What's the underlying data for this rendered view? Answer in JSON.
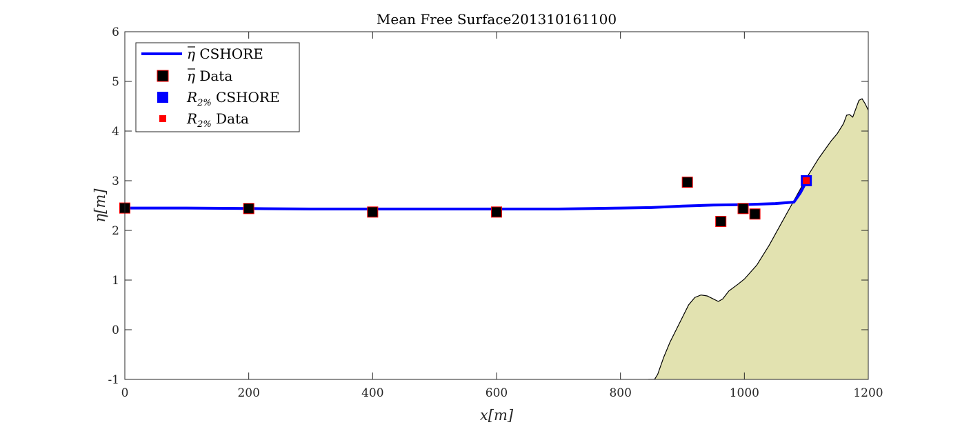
{
  "chart_data": {
    "type": "line",
    "title": "Mean Free Surface201310161100",
    "xlabel": "x[m]",
    "ylabel": "η[m]",
    "xlim": [
      0,
      1200
    ],
    "ylim": [
      -1,
      6
    ],
    "xticks": [
      "0",
      "200",
      "400",
      "600",
      "800",
      "1000",
      "1200"
    ],
    "yticks": [
      "-1",
      "0",
      "1",
      "2",
      "3",
      "4",
      "5",
      "6"
    ],
    "grid": false,
    "legend_position": "top-left",
    "colors": {
      "cshore_line": "#0000ff",
      "eta_data_fill": "#000000",
      "eta_data_edge": "#ff0000",
      "r2_cshore": "#0000ff",
      "r2_data": "#ff0000",
      "bathymetry_fill": "#e2e2b0"
    },
    "series": [
      {
        "name": "η CSHORE",
        "kind": "line",
        "x": [
          0,
          100,
          200,
          300,
          400,
          500,
          600,
          700,
          800,
          850,
          900,
          950,
          1000,
          1050,
          1080,
          1090,
          1100
        ],
        "y": [
          2.45,
          2.45,
          2.44,
          2.43,
          2.43,
          2.43,
          2.43,
          2.43,
          2.45,
          2.46,
          2.49,
          2.51,
          2.52,
          2.54,
          2.57,
          2.75,
          2.98
        ]
      },
      {
        "name": "η Data",
        "kind": "marker",
        "x": [
          0,
          200,
          400,
          600,
          908,
          962,
          998,
          1017
        ],
        "y": [
          2.45,
          2.44,
          2.37,
          2.37,
          2.97,
          2.18,
          2.44,
          2.33
        ]
      },
      {
        "name": "R2% CSHORE",
        "kind": "marker",
        "x": [
          1100
        ],
        "y": [
          3.0
        ]
      },
      {
        "name": "R2% Data",
        "kind": "marker",
        "x": [
          1100
        ],
        "y": [
          3.0
        ]
      }
    ],
    "bathymetry": {
      "x": [
        845,
        855,
        860,
        870,
        880,
        890,
        900,
        910,
        920,
        930,
        940,
        950,
        958,
        965,
        975,
        990,
        1000,
        1020,
        1040,
        1060,
        1080,
        1100,
        1120,
        1140,
        1150,
        1160,
        1165,
        1170,
        1175,
        1180,
        1185,
        1190,
        1195,
        1200
      ],
      "y": [
        -1.0,
        -1.0,
        -0.9,
        -0.55,
        -0.25,
        0.0,
        0.25,
        0.5,
        0.65,
        0.7,
        0.68,
        0.62,
        0.57,
        0.62,
        0.78,
        0.92,
        1.02,
        1.3,
        1.7,
        2.15,
        2.6,
        3.05,
        3.45,
        3.8,
        3.95,
        4.15,
        4.32,
        4.33,
        4.28,
        4.45,
        4.62,
        4.65,
        4.55,
        4.42
      ]
    },
    "legend": [
      {
        "main": "η",
        "over": true,
        "sub": "",
        "rest": " CSHORE"
      },
      {
        "main": "η",
        "over": true,
        "sub": "",
        "rest": " Data"
      },
      {
        "main": "R",
        "over": false,
        "sub": "2%",
        "rest": " CSHORE"
      },
      {
        "main": "R",
        "over": false,
        "sub": "2%",
        "rest": " Data"
      }
    ]
  }
}
